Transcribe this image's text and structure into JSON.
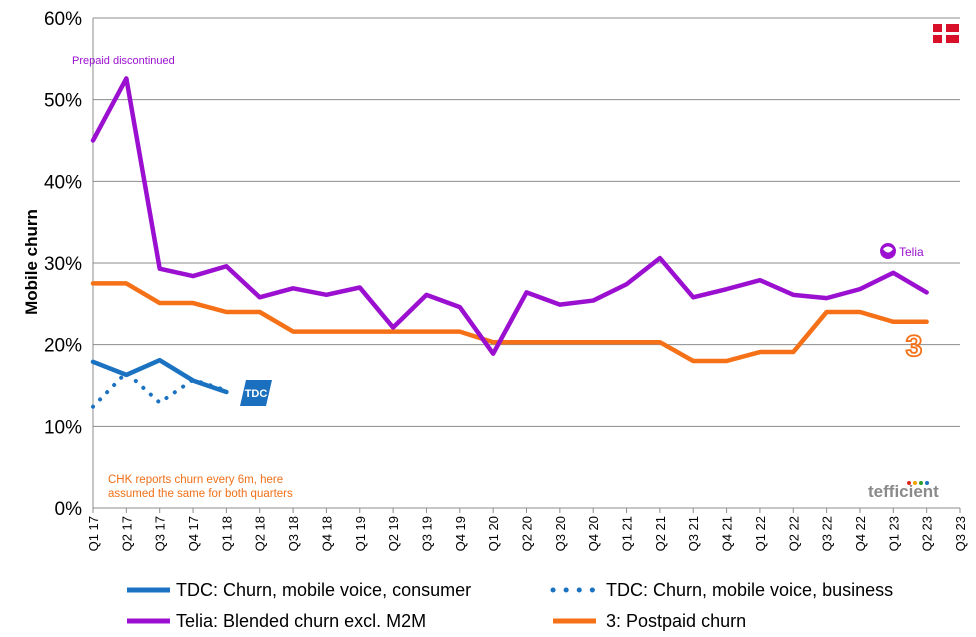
{
  "chart_data": {
    "type": "line",
    "ylabel": "Mobile churn",
    "xlabel": "",
    "ylim": [
      0,
      60
    ],
    "yticks": [
      "0%",
      "10%",
      "20%",
      "30%",
      "40%",
      "50%",
      "60%"
    ],
    "grid": true,
    "legend_position": "bottom",
    "categories": [
      "Q1 17",
      "Q2 17",
      "Q3 17",
      "Q4 17",
      "Q1 18",
      "Q2 18",
      "Q3 18",
      "Q4 18",
      "Q1 19",
      "Q2 19",
      "Q3 19",
      "Q4 19",
      "Q1 20",
      "Q2 20",
      "Q3 20",
      "Q4 20",
      "Q1 21",
      "Q2 21",
      "Q3 21",
      "Q4 21",
      "Q1 22",
      "Q2 22",
      "Q3 22",
      "Q4 22",
      "Q1 23",
      "Q2 23",
      "Q3 23"
    ],
    "series": [
      {
        "name": "TDC: Churn, mobile voice, consumer",
        "color": "#1a72c0",
        "dash": "solid",
        "values": [
          17.9,
          16.3,
          18.1,
          15.6,
          14.2,
          null,
          null,
          null,
          null,
          null,
          null,
          null,
          null,
          null,
          null,
          null,
          null,
          null,
          null,
          null,
          null,
          null,
          null,
          null,
          null,
          null,
          null
        ]
      },
      {
        "name": "TDC: Churn, mobile voice, business",
        "color": "#1a72c0",
        "dash": "dotted",
        "values": [
          12.4,
          16.6,
          12.9,
          15.7,
          14.4,
          null,
          null,
          null,
          null,
          null,
          null,
          null,
          null,
          null,
          null,
          null,
          null,
          null,
          null,
          null,
          null,
          null,
          null,
          null,
          null,
          null,
          null
        ]
      },
      {
        "name": "Telia: Blended churn excl. M2M",
        "color": "#9b10d0",
        "dash": "solid",
        "values": [
          45.0,
          52.6,
          29.3,
          28.4,
          29.6,
          25.8,
          26.9,
          26.1,
          27.0,
          22.1,
          26.1,
          24.6,
          18.9,
          26.4,
          24.9,
          25.4,
          27.4,
          30.6,
          25.8,
          26.8,
          27.9,
          26.1,
          25.7,
          26.8,
          28.8,
          26.4,
          null
        ]
      },
      {
        "name": "3: Postpaid churn",
        "color": "#f57016",
        "dash": "solid",
        "values": [
          27.5,
          27.5,
          25.1,
          25.1,
          24.0,
          24.0,
          21.6,
          21.6,
          21.6,
          21.6,
          21.6,
          21.6,
          20.3,
          20.3,
          20.3,
          20.3,
          20.3,
          20.3,
          18.0,
          18.0,
          19.1,
          19.1,
          24.0,
          24.0,
          22.8,
          22.8,
          null
        ]
      }
    ],
    "annotations": {
      "prepaid": "Prepaid discontinued",
      "chk_line1": "CHK reports churn every 6m, here",
      "chk_line2": "assumed the same for both quarters"
    }
  },
  "logos": {
    "tdc": "TDC",
    "telia": "Telia",
    "three": "3",
    "tefficient": "tefficient",
    "flag": "danish-flag-icon"
  }
}
